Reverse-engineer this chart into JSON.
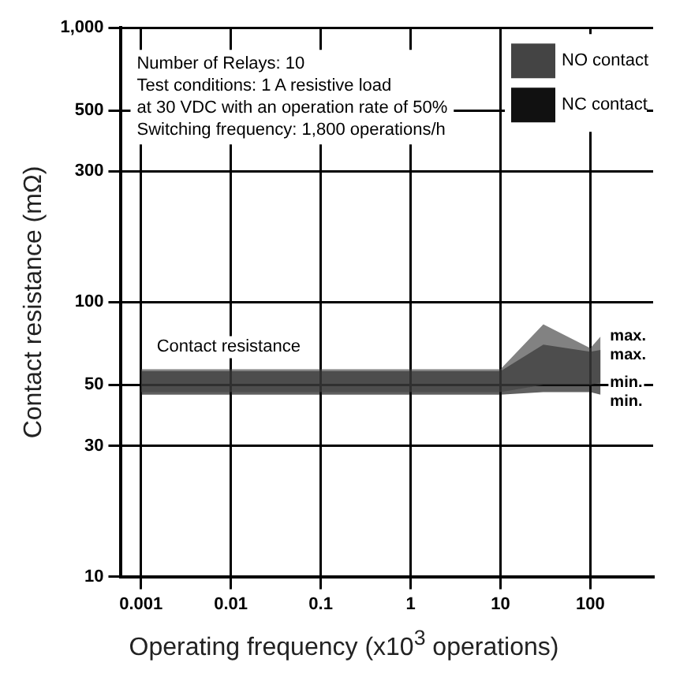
{
  "chart_data": {
    "type": "area",
    "xlabel": "Operating frequency (x10$^{3}$ operations)",
    "ylabel": "Contact resistance (mΩ)",
    "x": [
      0.001,
      10,
      30,
      100,
      130
    ],
    "series": [
      {
        "name": "NO contact",
        "color": "#444444",
        "values": [
          null,
          null,
          null,
          null,
          null
        ],
        "lower": [
          47,
          47,
          50,
          50,
          51
        ],
        "upper": [
          57,
          57,
          83,
          68,
          75
        ]
      },
      {
        "name": "NC contact",
        "color": "#111111",
        "values": [
          null,
          null,
          null,
          null,
          null
        ],
        "lower": [
          46,
          46,
          47,
          47,
          46
        ],
        "upper": [
          56,
          56,
          70,
          66,
          67
        ]
      }
    ],
    "log": "xy",
    "xlim": [
      0.0006,
      500
    ],
    "ylim": [
      10,
      1000
    ],
    "xticks": [
      0.001,
      0.01,
      0.1,
      1,
      10,
      100
    ],
    "yticks": [
      10,
      30,
      50,
      100,
      300,
      500,
      {
        "value": 1000,
        "label": "1,000"
      }
    ],
    "grid": true,
    "legend": "top right",
    "annotations": [
      "Number of Relays: 10",
      "Test conditions: 1 A resistive load",
      "at 30 VDC with an operation rate of 50%",
      "Switching frequency: 1,800 operations/h",
      "Contact resistance",
      "max.",
      "max.",
      "min.",
      "min."
    ]
  }
}
